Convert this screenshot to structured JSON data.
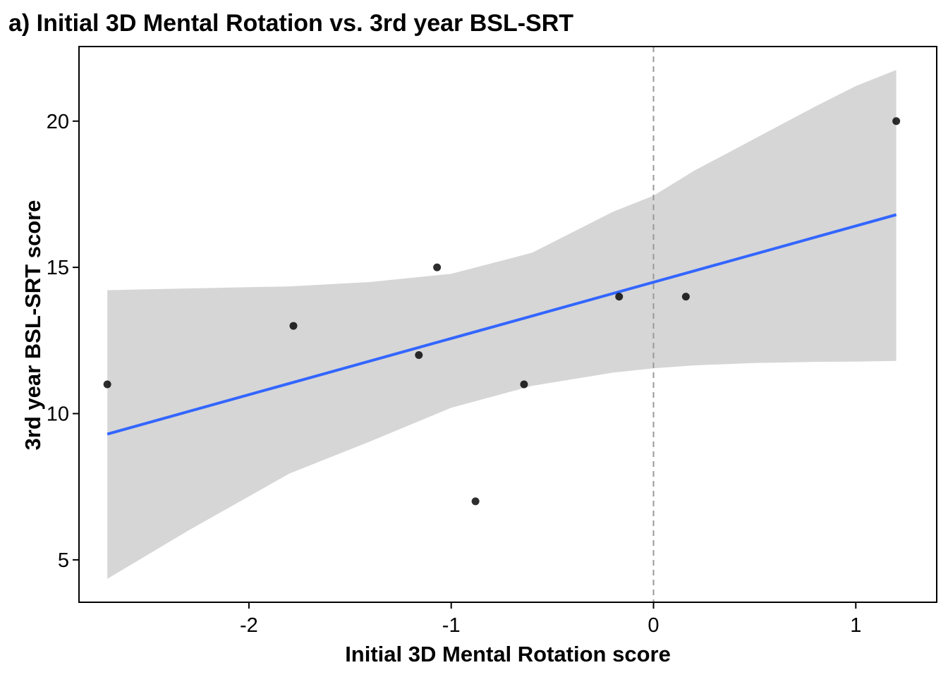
{
  "chart_data": {
    "type": "scatter",
    "title": "a) Initial 3D Mental Rotation vs. 3rd year BSL-SRT",
    "xlabel": "Initial 3D Mental Rotation score",
    "ylabel": "3rd year BSL-SRT score",
    "xlim": [
      -2.84,
      1.4
    ],
    "ylim": [
      3.55,
      22.55
    ],
    "xticks": [
      -2,
      -1,
      0,
      1
    ],
    "xtick_labels": [
      "-2",
      "-1",
      "0",
      "1"
    ],
    "yticks": [
      5,
      10,
      15,
      20
    ],
    "ytick_labels": [
      "5",
      "10",
      "15",
      "20"
    ],
    "points": [
      {
        "x": -2.7,
        "y": 11
      },
      {
        "x": -1.78,
        "y": 13
      },
      {
        "x": -1.16,
        "y": 12
      },
      {
        "x": -1.07,
        "y": 15
      },
      {
        "x": -0.88,
        "y": 7
      },
      {
        "x": -0.64,
        "y": 11
      },
      {
        "x": -0.17,
        "y": 14
      },
      {
        "x": 0.16,
        "y": 14
      },
      {
        "x": 1.2,
        "y": 20
      }
    ],
    "fit_line": {
      "x": [
        -2.7,
        1.2
      ],
      "y": [
        9.3,
        16.8
      ]
    },
    "confidence_band": {
      "x": [
        -2.7,
        -2.3,
        -1.8,
        -1.4,
        -1.0,
        -0.6,
        -0.2,
        0.0,
        0.2,
        0.5,
        0.8,
        1.0,
        1.2
      ],
      "upper": [
        14.22,
        14.28,
        14.35,
        14.5,
        14.78,
        15.5,
        16.9,
        17.45,
        18.3,
        19.4,
        20.5,
        21.2,
        21.75
      ],
      "lower": [
        4.35,
        6.0,
        7.95,
        9.05,
        10.2,
        10.95,
        11.4,
        11.55,
        11.65,
        11.73,
        11.77,
        11.78,
        11.8
      ]
    },
    "reference_line": {
      "x": 0,
      "style": "dashed"
    },
    "grid": false,
    "legend": "none",
    "colors": {
      "points": "#000000",
      "fit": "#3366ff",
      "band": "#d6d6d6",
      "reference": "#999999",
      "frame": "#000000"
    }
  }
}
